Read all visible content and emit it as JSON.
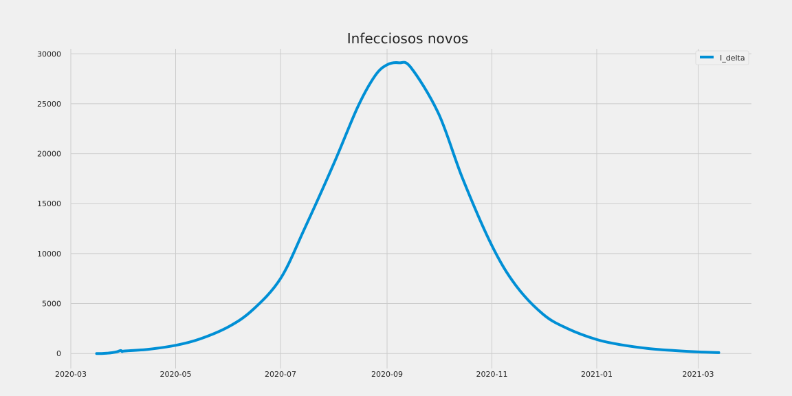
{
  "chart_data": {
    "type": "line",
    "title": "Infecciosos novos",
    "xlabel": "",
    "ylabel": "",
    "x_axis_type": "date",
    "xlim": [
      "2020-03-01",
      "2021-04-01"
    ],
    "ylim": [
      -1500,
      30500
    ],
    "x_ticks": [
      "2020-03",
      "2020-05",
      "2020-07",
      "2020-09",
      "2020-11",
      "2021-01",
      "2021-03"
    ],
    "y_ticks": [
      0,
      5000,
      10000,
      15000,
      20000,
      25000,
      30000
    ],
    "y_tick_labels": [
      "0",
      "5000",
      "10000",
      "15000",
      "20000",
      "25000",
      "30000"
    ],
    "grid": true,
    "legend_position": "top-right",
    "colors": {
      "background": "#f0f0f0",
      "grid": "#cbcbcb",
      "series": "#008fd5",
      "text": "#222222"
    },
    "series": [
      {
        "name": "I_delta",
        "color": "#008fd5",
        "points": [
          {
            "x": "2020-03-16",
            "y": 0
          },
          {
            "x": "2020-03-19",
            "y": 0
          },
          {
            "x": "2020-03-22",
            "y": 30
          },
          {
            "x": "2020-03-25",
            "y": 80
          },
          {
            "x": "2020-03-28",
            "y": 180
          },
          {
            "x": "2020-03-30",
            "y": 300
          },
          {
            "x": "2020-03-31",
            "y": 200
          },
          {
            "x": "2020-04-01",
            "y": 250
          },
          {
            "x": "2020-04-15",
            "y": 420
          },
          {
            "x": "2020-05-01",
            "y": 820
          },
          {
            "x": "2020-05-15",
            "y": 1450
          },
          {
            "x": "2020-06-01",
            "y": 2700
          },
          {
            "x": "2020-06-15",
            "y": 4400
          },
          {
            "x": "2020-07-01",
            "y": 7500
          },
          {
            "x": "2020-07-15",
            "y": 12500
          },
          {
            "x": "2020-08-01",
            "y": 19000
          },
          {
            "x": "2020-08-15",
            "y": 24700
          },
          {
            "x": "2020-08-25",
            "y": 27800
          },
          {
            "x": "2020-09-01",
            "y": 28900
          },
          {
            "x": "2020-09-08",
            "y": 29100
          },
          {
            "x": "2020-09-15",
            "y": 28600
          },
          {
            "x": "2020-10-01",
            "y": 24000
          },
          {
            "x": "2020-10-15",
            "y": 17500
          },
          {
            "x": "2020-11-01",
            "y": 10800
          },
          {
            "x": "2020-11-15",
            "y": 6800
          },
          {
            "x": "2020-12-01",
            "y": 3900
          },
          {
            "x": "2020-12-15",
            "y": 2500
          },
          {
            "x": "2021-01-01",
            "y": 1400
          },
          {
            "x": "2021-01-15",
            "y": 880
          },
          {
            "x": "2021-02-01",
            "y": 480
          },
          {
            "x": "2021-02-15",
            "y": 300
          },
          {
            "x": "2021-03-01",
            "y": 160
          },
          {
            "x": "2021-03-13",
            "y": 90
          }
        ]
      }
    ]
  }
}
